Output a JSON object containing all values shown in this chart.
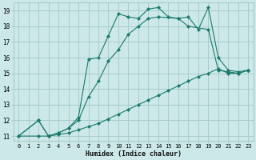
{
  "xlabel": "Humidex (Indice chaleur)",
  "bg_color": "#cce8e8",
  "grid_color": "#aacccc",
  "line_color": "#1a7a6e",
  "xlim": [
    -0.5,
    23.5
  ],
  "ylim": [
    10.7,
    19.5
  ],
  "xticks": [
    0,
    1,
    2,
    3,
    4,
    5,
    6,
    7,
    8,
    9,
    10,
    11,
    12,
    13,
    14,
    15,
    16,
    17,
    18,
    19,
    20,
    21,
    22,
    23
  ],
  "yticks": [
    11,
    12,
    13,
    14,
    15,
    16,
    17,
    18,
    19
  ],
  "series": [
    {
      "x": [
        0,
        2,
        3,
        4,
        5,
        6,
        7,
        8,
        9,
        10,
        11,
        12,
        13,
        14,
        15,
        16,
        17,
        18,
        19,
        20,
        21,
        22,
        23
      ],
      "y": [
        11,
        12,
        11,
        11.2,
        11.5,
        12.2,
        15.9,
        16.0,
        17.4,
        18.8,
        18.6,
        18.5,
        19.1,
        19.2,
        18.6,
        18.5,
        18.6,
        17.8,
        19.2,
        16.0,
        15.2,
        15.1,
        15.2
      ]
    },
    {
      "x": [
        0,
        2,
        3,
        4,
        5,
        6,
        7,
        8,
        9,
        10,
        11,
        12,
        13,
        14,
        16,
        17,
        19,
        20,
        21,
        22,
        23
      ],
      "y": [
        11,
        12,
        11,
        11.2,
        11.5,
        12.0,
        13.5,
        14.5,
        15.8,
        16.5,
        17.5,
        18.0,
        18.5,
        18.6,
        18.5,
        18.0,
        17.8,
        15.2,
        15.1,
        15.0,
        15.2
      ]
    },
    {
      "x": [
        0,
        2,
        3,
        4,
        5,
        6,
        7,
        8,
        9,
        10,
        11,
        12,
        13,
        14,
        15,
        16,
        17,
        18,
        19,
        20,
        21,
        22,
        23
      ],
      "y": [
        11,
        11,
        11,
        11.1,
        11.2,
        11.4,
        11.6,
        11.8,
        12.1,
        12.4,
        12.7,
        13.0,
        13.3,
        13.6,
        13.9,
        14.2,
        14.5,
        14.8,
        15.0,
        15.3,
        15.0,
        15.0,
        15.2
      ]
    }
  ]
}
